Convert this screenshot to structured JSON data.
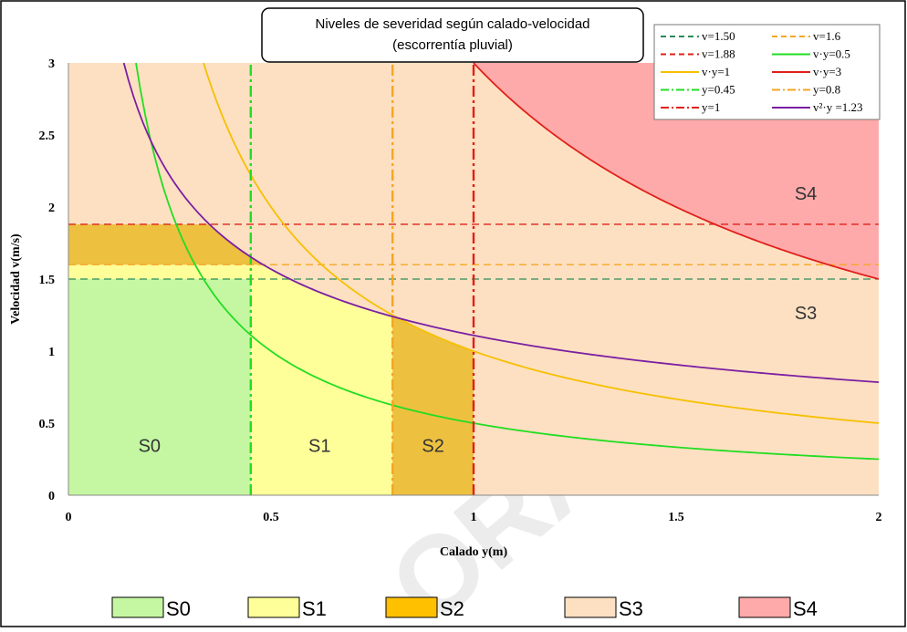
{
  "chart_data": {
    "type": "line",
    "title": "Niveles de severidad según calado-velocidad",
    "subtitle": "(escorrentía pluvial)",
    "xlabel": "Calado y(m)",
    "ylabel": "Velocidad v(m/s)",
    "xlim": [
      0,
      2
    ],
    "ylim": [
      0,
      3
    ],
    "x_ticks": [
      "0",
      "0.5",
      "1",
      "1.5",
      "2"
    ],
    "y_ticks": [
      "0",
      "0.5",
      "1",
      "1.5",
      "2",
      "2.5",
      "3"
    ],
    "grid": false,
    "legend_position": "top-right",
    "series": [
      {
        "name": "v=1.50",
        "kind": "hline",
        "value": 1.5,
        "color": "#2e8b57",
        "dash": "dashed"
      },
      {
        "name": "v=1.6",
        "kind": "hline",
        "value": 1.6,
        "color": "#f5a623",
        "dash": "dashed"
      },
      {
        "name": "v=1.88",
        "kind": "hline",
        "value": 1.88,
        "color": "#e0201a",
        "dash": "dashed"
      },
      {
        "name": "v·y=0.5",
        "kind": "hyperbola",
        "k": 0.5,
        "power": 1,
        "color": "#22dd22",
        "dash": "solid"
      },
      {
        "name": "v·y=1",
        "kind": "hyperbola",
        "k": 1,
        "power": 1,
        "color": "#f6c000",
        "dash": "solid"
      },
      {
        "name": "v·y=3",
        "kind": "hyperbola",
        "k": 3,
        "power": 1,
        "color": "#e0201a",
        "dash": "solid"
      },
      {
        "name": "y=0.45",
        "kind": "vline",
        "value": 0.45,
        "color": "#22dd22",
        "dash": "dashdot"
      },
      {
        "name": "y=0.8",
        "kind": "vline",
        "value": 0.8,
        "color": "#f5a623",
        "dash": "dashdot"
      },
      {
        "name": "y=1",
        "kind": "vline",
        "value": 1,
        "color": "#e0201a",
        "dash": "dashdot"
      },
      {
        "name": "v²·y =1.23",
        "kind": "hyperbola",
        "k": 1.23,
        "power": 2,
        "color": "#7b1fa2",
        "dash": "solid"
      }
    ],
    "regions": [
      {
        "label": "S0",
        "color": "#c5f7a2",
        "text_x": 0.2,
        "text_y": 0.3
      },
      {
        "label": "S1",
        "color": "#ffff99",
        "text_x": 0.62,
        "text_y": 0.3
      },
      {
        "label": "S2",
        "color": "#edc040",
        "text_x": 0.9,
        "text_y": 0.3
      },
      {
        "label": "S3",
        "color": "#fde0c2",
        "text_x": 1.82,
        "text_y": 1.22
      },
      {
        "label": "S4",
        "color": "#ffaaaa",
        "text_x": 1.82,
        "text_y": 2.05
      }
    ],
    "bottom_legend": [
      {
        "label": "S0",
        "color": "#c5f7a2"
      },
      {
        "label": "S1",
        "color": "#ffff99"
      },
      {
        "label": "S2",
        "color": "#ffc000"
      },
      {
        "label": "S3",
        "color": "#fde0c2"
      },
      {
        "label": "S4",
        "color": "#ffaaaa"
      }
    ]
  }
}
